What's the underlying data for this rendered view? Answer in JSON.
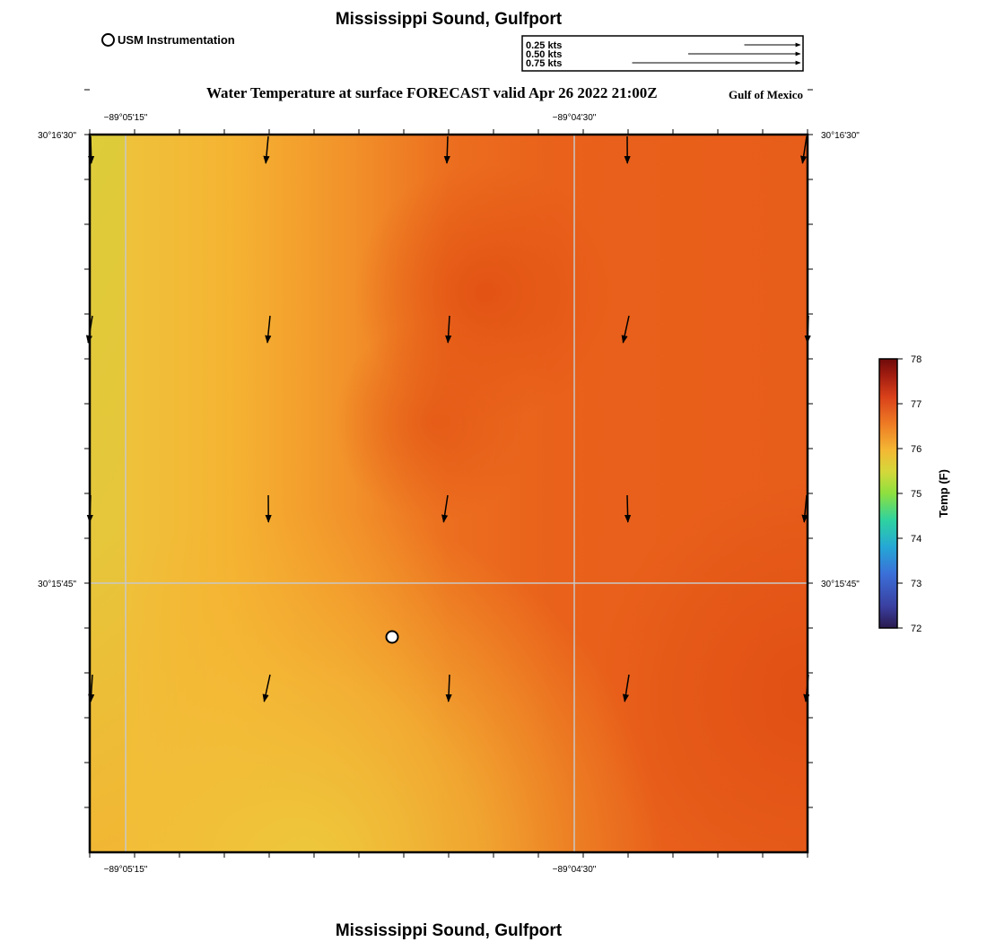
{
  "header": {
    "title": "Mississippi Sound, Gulfport",
    "legend_label": "USM Instrumentation"
  },
  "scale_legend": [
    {
      "label": "0.25 kts",
      "kts": 0.25
    },
    {
      "label": "0.50 kts",
      "kts": 0.5
    },
    {
      "label": "0.75 kts",
      "kts": 0.75
    }
  ],
  "map": {
    "title": "Water Temperature at surface FORECAST valid Apr 26 2022 21:00Z",
    "region": "Gulf of Mexico",
    "lon_labels": [
      "−89°05'15\"",
      "−89°04'30\""
    ],
    "lat_labels": [
      "30°16'30\"",
      "30°15'45\""
    ]
  },
  "colorbar": {
    "label": "Temp (F)",
    "min": 72,
    "max": 78,
    "ticks": [
      "78",
      "77",
      "76",
      "75",
      "74",
      "73",
      "72"
    ],
    "colors": [
      "#2a1a4e",
      "#3b4fc0",
      "#23a8d8",
      "#2fd596",
      "#a8e33a",
      "#e9c93a",
      "#f4a430",
      "#e8601e",
      "#c4300e",
      "#7a0c0c"
    ]
  },
  "instrument_station": {
    "label": "USM Instrumentation"
  },
  "footer": {
    "title": "Mississippi Sound, Gulfport"
  }
}
